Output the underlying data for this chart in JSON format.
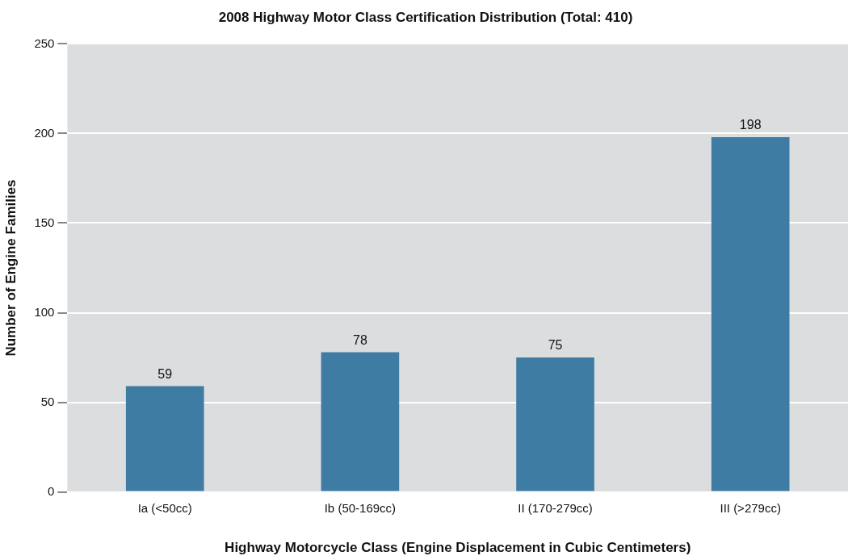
{
  "chart_data": {
    "type": "bar",
    "title": "2008 Highway Motor Class Certification Distribution (Total: 410)",
    "xlabel": "Highway Motorcycle Class (Engine Displacement in Cubic Centimeters)",
    "ylabel": "Number of Engine Families",
    "categories": [
      "Ia (<50cc)",
      "Ib (50-169cc)",
      "II (170-279cc)",
      "III (>279cc)"
    ],
    "values": [
      59,
      78,
      75,
      198
    ],
    "color": "#3f7ca4",
    "ylim": [
      0,
      250
    ],
    "yticks": [
      0,
      50,
      100,
      150,
      200,
      250
    ],
    "grid": "y",
    "data_labels": true,
    "legend": false
  }
}
